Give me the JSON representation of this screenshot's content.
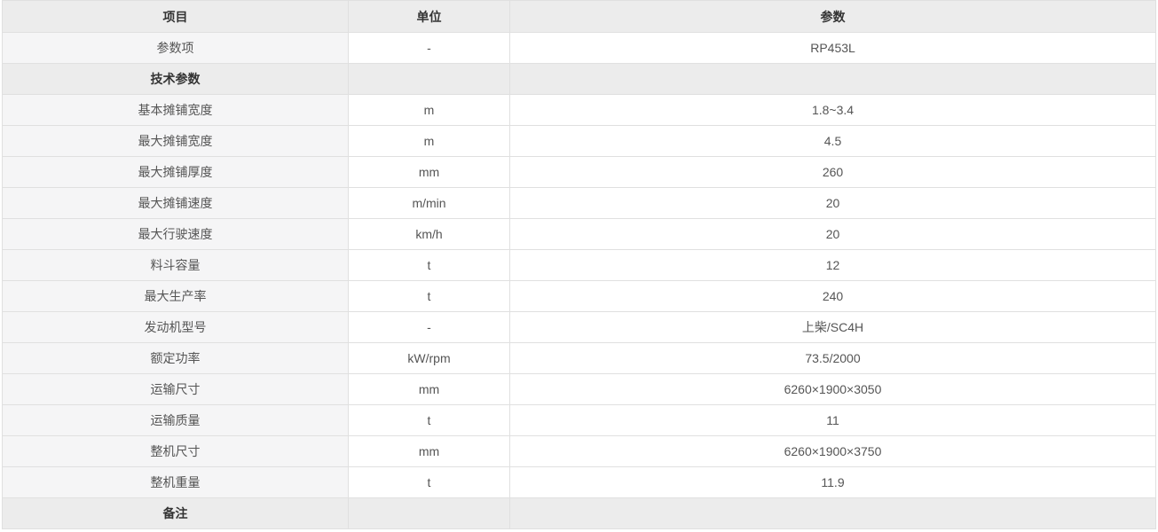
{
  "colors": {
    "header_bg": "#ececec",
    "section_bg": "#ececec",
    "item_col_bg": "#f5f5f6",
    "cell_bg": "#ffffff",
    "border": "#e0e0e0",
    "header_text": "#333333",
    "body_text": "#555555"
  },
  "chart_data": {
    "type": "table",
    "title": "",
    "columns": [
      "项目",
      "单位",
      "参数"
    ],
    "rows": [
      {
        "item": "参数项",
        "unit": "-",
        "value": "RP453L",
        "section": false
      },
      {
        "item": "技术参数",
        "unit": "",
        "value": "",
        "section": true
      },
      {
        "item": "基本摊铺宽度",
        "unit": "m",
        "value": "1.8~3.4",
        "section": false
      },
      {
        "item": "最大摊铺宽度",
        "unit": "m",
        "value": "4.5",
        "section": false
      },
      {
        "item": "最大摊铺厚度",
        "unit": "mm",
        "value": "260",
        "section": false
      },
      {
        "item": "最大摊铺速度",
        "unit": "m/min",
        "value": "20",
        "section": false
      },
      {
        "item": "最大行驶速度",
        "unit": "km/h",
        "value": "20",
        "section": false
      },
      {
        "item": "料斗容量",
        "unit": "t",
        "value": "12",
        "section": false
      },
      {
        "item": "最大生产率",
        "unit": "t",
        "value": "240",
        "section": false
      },
      {
        "item": "发动机型号",
        "unit": "-",
        "value": "上柴/SC4H",
        "section": false
      },
      {
        "item": "额定功率",
        "unit": "kW/rpm",
        "value": "73.5/2000",
        "section": false
      },
      {
        "item": "运输尺寸",
        "unit": "mm",
        "value": "6260×1900×3050",
        "section": false
      },
      {
        "item": "运输质量",
        "unit": "t",
        "value": "11",
        "section": false
      },
      {
        "item": "整机尺寸",
        "unit": "mm",
        "value": "6260×1900×3750",
        "section": false
      },
      {
        "item": "整机重量",
        "unit": "t",
        "value": "11.9",
        "section": false
      },
      {
        "item": "备注",
        "unit": "",
        "value": "",
        "section": true
      }
    ]
  }
}
